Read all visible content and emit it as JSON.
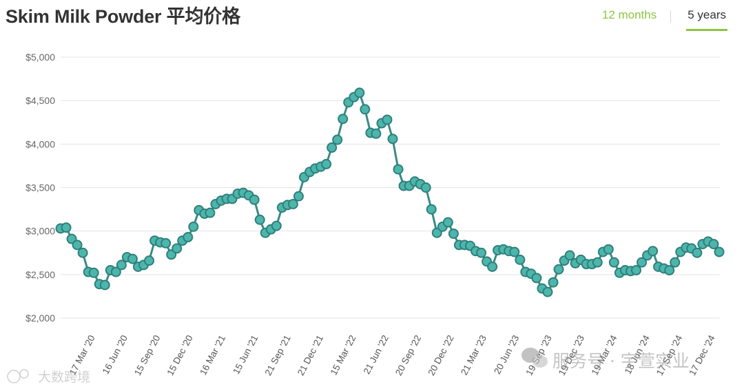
{
  "header": {
    "title": "Skim Milk Powder 平均价格",
    "tabs": [
      {
        "label": "12 months",
        "active": false
      },
      {
        "label": "5 years",
        "active": true
      }
    ]
  },
  "colors": {
    "accent": "#8cc63f",
    "series_stroke": "#3a8a86",
    "point_fill": "#4db6ac"
  },
  "chart_data": {
    "type": "line",
    "title": "Skim Milk Powder 平均价格",
    "xlabel": "",
    "ylabel": "",
    "ylim": [
      2000,
      5000
    ],
    "yticks": [
      2000,
      2500,
      3000,
      3500,
      4000,
      4500,
      5000
    ],
    "ytick_labels": [
      "$2,000",
      "$2,500",
      "$3,000",
      "$3,500",
      "$4,000",
      "$4,500",
      "$5,000"
    ],
    "grid": true,
    "legend": "none",
    "xtick_labels": [
      "17 Mar '20",
      "16 Jun '20",
      "15 Sep '20",
      "15 Dec '20",
      "16 Mar '21",
      "15 Jun '21",
      "21 Sep '21",
      "21 Dec '21",
      "15 Mar '22",
      "21 Jun '22",
      "20 Sep '22",
      "20 Dec '22",
      "21 Mar '23",
      "20 Jun '23",
      "19 Sep '23",
      "19 Dec '23",
      "19 Mar '24",
      "18 Jun '24",
      "17 Sep '24",
      "17 Dec '24"
    ],
    "series": [
      {
        "values": [
          3030,
          3040,
          2910,
          2840,
          2750,
          2530,
          2520,
          2390,
          2380,
          2550,
          2530,
          2610,
          2700,
          2680,
          2590,
          2610,
          2660,
          2890,
          2870,
          2860,
          2730,
          2800,
          2890,
          2930,
          3050,
          3240,
          3200,
          3210,
          3310,
          3350,
          3370,
          3370,
          3430,
          3440,
          3410,
          3360,
          3130,
          2980,
          3020,
          3060,
          3270,
          3300,
          3310,
          3400,
          3620,
          3680,
          3720,
          3740,
          3770,
          3960,
          4050,
          4290,
          4480,
          4540,
          4590,
          4400,
          4130,
          4120,
          4240,
          4280,
          4060,
          3710,
          3520,
          3520,
          3570,
          3540,
          3500,
          3250,
          2980,
          3050,
          3100,
          2970,
          2840,
          2840,
          2830,
          2770,
          2750,
          2650,
          2590,
          2780,
          2790,
          2770,
          2760,
          2670,
          2530,
          2510,
          2460,
          2340,
          2300,
          2410,
          2560,
          2660,
          2720,
          2630,
          2670,
          2620,
          2620,
          2640,
          2760,
          2790,
          2640,
          2520,
          2550,
          2540,
          2550,
          2640,
          2720,
          2770,
          2590,
          2570,
          2550,
          2640,
          2760,
          2810,
          2800,
          2750,
          2850,
          2880,
          2850,
          2760
        ]
      }
    ]
  },
  "watermarks": {
    "left": "大数跨境",
    "right": "服务号 · 宇萱实业"
  }
}
